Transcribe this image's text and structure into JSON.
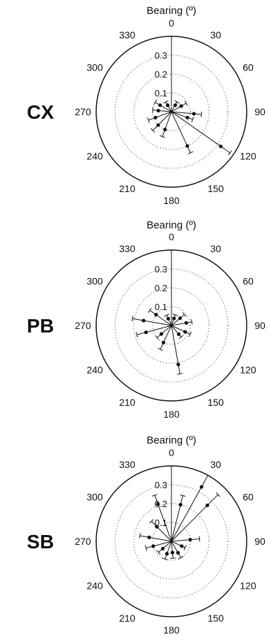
{
  "colors": {
    "ink": "#111111",
    "background": "#ffffff"
  },
  "chart_data": [
    {
      "type": "polar",
      "panel_label": "CX",
      "title": "Bearing (º)",
      "angle_ticks": [
        "0",
        "30",
        "60",
        "90",
        "120",
        "150",
        "180",
        "210",
        "240",
        "270",
        "300",
        "330"
      ],
      "radial_ticks": [
        "0.1",
        "0.2",
        "0.3"
      ],
      "rlim": [
        0,
        0.4
      ],
      "direction": "clockwise",
      "zero_location": "top",
      "grid": "dotted",
      "points": [
        {
          "bearing": 0,
          "r": 0.3,
          "err": 0
        },
        {
          "bearing": 30,
          "r": 0.04,
          "err": 0.02
        },
        {
          "bearing": 60,
          "r": 0.06,
          "err": 0.03
        },
        {
          "bearing": 95,
          "r": 0.12,
          "err": 0.04
        },
        {
          "bearing": 110,
          "r": 0.09,
          "err": 0.03
        },
        {
          "bearing": 125,
          "r": 0.32,
          "err": 0.06
        },
        {
          "bearing": 155,
          "r": 0.2,
          "err": 0.04
        },
        {
          "bearing": 200,
          "r": 0.1,
          "err": 0.04
        },
        {
          "bearing": 225,
          "r": 0.1,
          "err": 0.04
        },
        {
          "bearing": 250,
          "r": 0.09,
          "err": 0.04
        },
        {
          "bearing": 275,
          "r": 0.07,
          "err": 0.03
        },
        {
          "bearing": 300,
          "r": 0.07,
          "err": 0.03
        },
        {
          "bearing": 330,
          "r": 0.04,
          "err": 0.02
        }
      ]
    },
    {
      "type": "polar",
      "panel_label": "PB",
      "title": "Bearing (º)",
      "angle_ticks": [
        "0",
        "30",
        "60",
        "90",
        "120",
        "150",
        "180",
        "210",
        "240",
        "270",
        "300",
        "330"
      ],
      "radial_ticks": [
        "0.1",
        "0.2",
        "0.3"
      ],
      "rlim": [
        0,
        0.4
      ],
      "direction": "clockwise",
      "zero_location": "top",
      "grid": "dotted",
      "points": [
        {
          "bearing": 0,
          "r": 0.3,
          "err": 0
        },
        {
          "bearing": 20,
          "r": 0.04,
          "err": 0.02
        },
        {
          "bearing": 50,
          "r": 0.06,
          "err": 0.03
        },
        {
          "bearing": 80,
          "r": 0.08,
          "err": 0.03
        },
        {
          "bearing": 115,
          "r": 0.08,
          "err": 0.03
        },
        {
          "bearing": 140,
          "r": 0.06,
          "err": 0.02
        },
        {
          "bearing": 170,
          "r": 0.21,
          "err": 0.05
        },
        {
          "bearing": 205,
          "r": 0.1,
          "err": 0.04
        },
        {
          "bearing": 230,
          "r": 0.07,
          "err": 0.03
        },
        {
          "bearing": 255,
          "r": 0.14,
          "err": 0.05
        },
        {
          "bearing": 280,
          "r": 0.15,
          "err": 0.06
        },
        {
          "bearing": 305,
          "r": 0.1,
          "err": 0.04
        },
        {
          "bearing": 335,
          "r": 0.04,
          "err": 0.02
        }
      ]
    },
    {
      "type": "polar",
      "panel_label": "SB",
      "title": "Bearing (º)",
      "angle_ticks": [
        "0",
        "30",
        "60",
        "90",
        "120",
        "150",
        "180",
        "210",
        "240",
        "270",
        "300",
        "330"
      ],
      "radial_ticks": [
        "0.1",
        "0.2",
        "0.3"
      ],
      "rlim": [
        0,
        0.4
      ],
      "direction": "clockwise",
      "zero_location": "top",
      "grid": "dotted",
      "points": [
        {
          "bearing": 0,
          "r": 0.3,
          "err": 0
        },
        {
          "bearing": 14,
          "r": 0.2,
          "err": 0.05
        },
        {
          "bearing": 29,
          "r": 0.33,
          "err": 0.07
        },
        {
          "bearing": 45,
          "r": 0.27,
          "err": 0.08
        },
        {
          "bearing": 85,
          "r": 0.1,
          "err": 0.05
        },
        {
          "bearing": 115,
          "r": 0.06,
          "err": 0.02
        },
        {
          "bearing": 150,
          "r": 0.07,
          "err": 0.03
        },
        {
          "bearing": 175,
          "r": 0.06,
          "err": 0.03
        },
        {
          "bearing": 200,
          "r": 0.07,
          "err": 0.03
        },
        {
          "bearing": 230,
          "r": 0.06,
          "err": 0.03
        },
        {
          "bearing": 255,
          "r": 0.1,
          "err": 0.04
        },
        {
          "bearing": 280,
          "r": 0.12,
          "err": 0.05
        },
        {
          "bearing": 315,
          "r": 0.11,
          "err": 0.04
        },
        {
          "bearing": 340,
          "r": 0.21,
          "err": 0.05
        }
      ]
    }
  ]
}
